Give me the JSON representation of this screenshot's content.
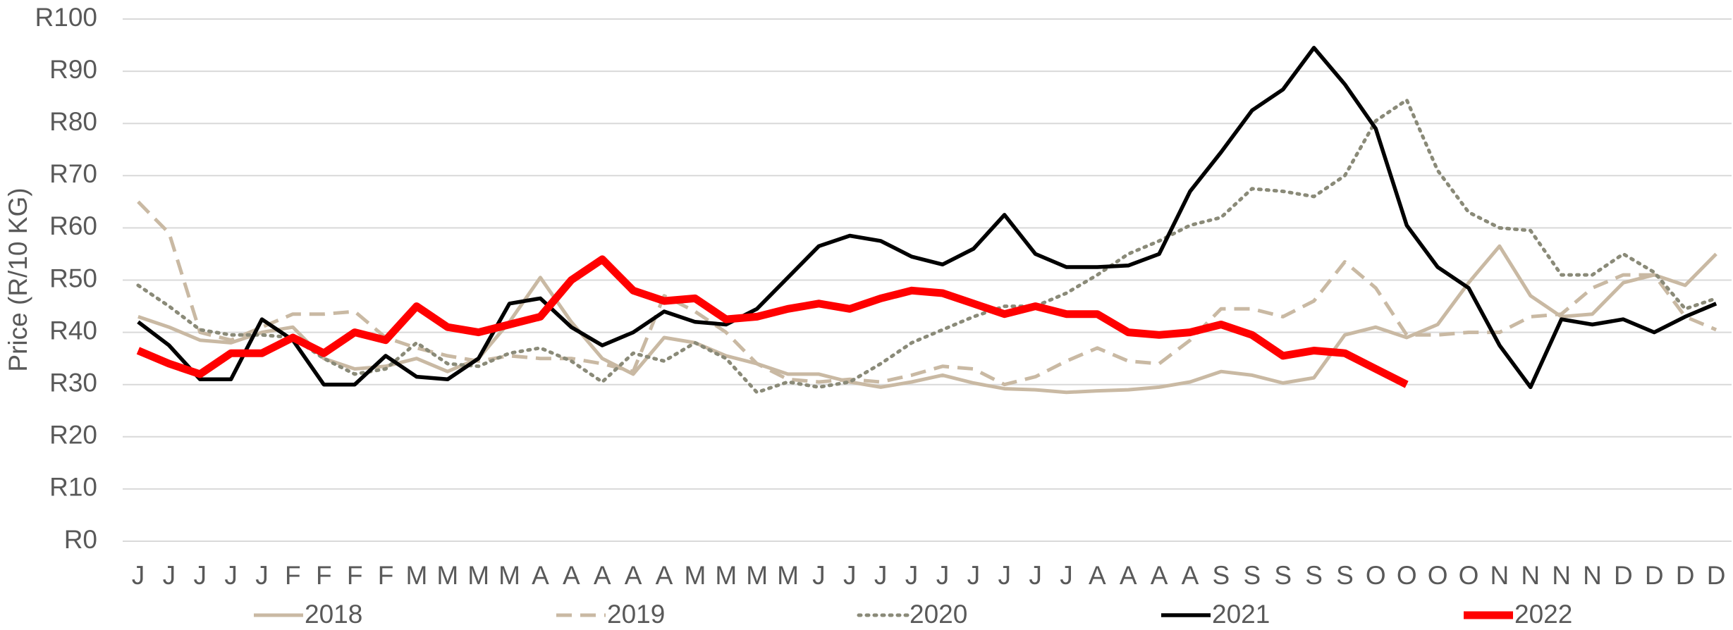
{
  "chart_data": {
    "type": "line",
    "y_label": "Price (R/10 KG)",
    "categories": [
      "J",
      "J",
      "J",
      "J",
      "J",
      "F",
      "F",
      "F",
      "F",
      "M",
      "M",
      "M",
      "M",
      "A",
      "A",
      "A",
      "A",
      "A",
      "M",
      "M",
      "M",
      "M",
      "J",
      "J",
      "J",
      "J",
      "J",
      "J",
      "J",
      "J",
      "J",
      "A",
      "A",
      "A",
      "A",
      "S",
      "S",
      "S",
      "S",
      "S",
      "O",
      "O",
      "O",
      "O",
      "N",
      "N",
      "N",
      "N",
      "D",
      "D",
      "D",
      "D"
    ],
    "ylim": [
      0,
      100
    ],
    "yticks": [
      {
        "value": 0,
        "label": "R0"
      },
      {
        "value": 10,
        "label": "R10"
      },
      {
        "value": 20,
        "label": "R20"
      },
      {
        "value": 30,
        "label": "R30"
      },
      {
        "value": 40,
        "label": "R40"
      },
      {
        "value": 50,
        "label": "R50"
      },
      {
        "value": 60,
        "label": "R60"
      },
      {
        "value": 70,
        "label": "R70"
      },
      {
        "value": 80,
        "label": "R80"
      },
      {
        "value": 90,
        "label": "R90"
      },
      {
        "value": 100,
        "label": "R100"
      }
    ],
    "grid": true,
    "legend": "bottom",
    "series": [
      {
        "name": "2018",
        "color": "#c9b9a3",
        "linestyle": "solid",
        "values": [
          43,
          41,
          38.5,
          38,
          40,
          41,
          35,
          33,
          33.5,
          35,
          32.5,
          35,
          42,
          50.5,
          42,
          35,
          32,
          39,
          38,
          35.5,
          34,
          32,
          32,
          30.5,
          29.5,
          30.5,
          31.8,
          30.3,
          29.2,
          29,
          28.5,
          28.8,
          29,
          29.5,
          30.5,
          32.5,
          31.8,
          30.3,
          31.3,
          39.5,
          41,
          39,
          41.5,
          49.5,
          56.5,
          47,
          43,
          43.5,
          49.5,
          51,
          49,
          55
        ]
      },
      {
        "name": "2019",
        "color": "#c9b9a3",
        "linestyle": "dashed",
        "values": [
          65,
          59,
          40,
          38.5,
          41,
          43.5,
          43.5,
          44,
          39,
          37,
          35.5,
          34.5,
          35.5,
          35,
          35,
          34,
          32.5,
          47,
          44,
          40,
          34,
          31,
          30.5,
          31,
          30.5,
          31.8,
          33.5,
          33,
          30,
          31.5,
          34.5,
          37,
          34.5,
          34,
          38.5,
          44.5,
          44.5,
          43,
          46,
          53.5,
          48.5,
          39.5,
          39.5,
          40,
          40,
          43,
          43.5,
          48.5,
          51,
          51,
          43,
          40.5
        ]
      },
      {
        "name": "2020",
        "color": "#8a8a78",
        "linestyle": "dotted",
        "values": [
          49,
          45,
          40.5,
          39.5,
          39.5,
          39,
          35,
          32,
          33,
          38,
          34,
          33.5,
          36,
          37,
          34.5,
          30.5,
          36,
          34.5,
          38,
          35,
          28.5,
          30.5,
          29.5,
          30.5,
          34,
          38,
          40.5,
          43,
          45,
          45,
          47.5,
          51,
          55,
          57.5,
          60.5,
          62,
          67.5,
          67,
          66,
          70,
          80.5,
          84.5,
          71,
          63,
          60,
          59.5,
          51,
          51,
          55,
          51.5,
          44.5,
          46.5
        ]
      },
      {
        "name": "2021",
        "color": "#000000",
        "linestyle": "solid",
        "values": [
          42,
          37.5,
          31,
          31,
          42.5,
          38.5,
          30,
          30,
          35.5,
          31.5,
          31,
          35,
          45.5,
          46.5,
          41,
          37.5,
          40,
          44,
          42,
          41.5,
          44.5,
          50.5,
          56.5,
          58.5,
          57.5,
          54.5,
          53,
          56,
          62.5,
          55,
          52.5,
          52.5,
          52.8,
          55,
          67,
          74.5,
          82.5,
          86.5,
          94.5,
          87.5,
          79,
          60.5,
          52.5,
          48.5,
          37.5,
          29.5,
          42.5,
          41.5,
          42.5,
          40,
          43,
          45.5
        ]
      },
      {
        "name": "2022",
        "color": "#ff0000",
        "linestyle": "solid",
        "values": [
          36.5,
          34,
          32,
          36,
          36,
          39,
          36,
          40,
          38.5,
          45,
          41,
          40,
          41.5,
          43,
          50,
          54,
          48,
          46,
          46.5,
          42.5,
          43,
          44.5,
          45.5,
          44.5,
          46.5,
          48,
          47.5,
          45.5,
          43.5,
          45,
          43.5,
          43.5,
          40,
          39.5,
          40,
          41.5,
          39.5,
          35.5,
          36.5,
          36,
          33,
          30,
          null,
          null,
          null,
          null,
          null,
          null,
          null,
          null,
          null,
          null
        ]
      }
    ]
  }
}
